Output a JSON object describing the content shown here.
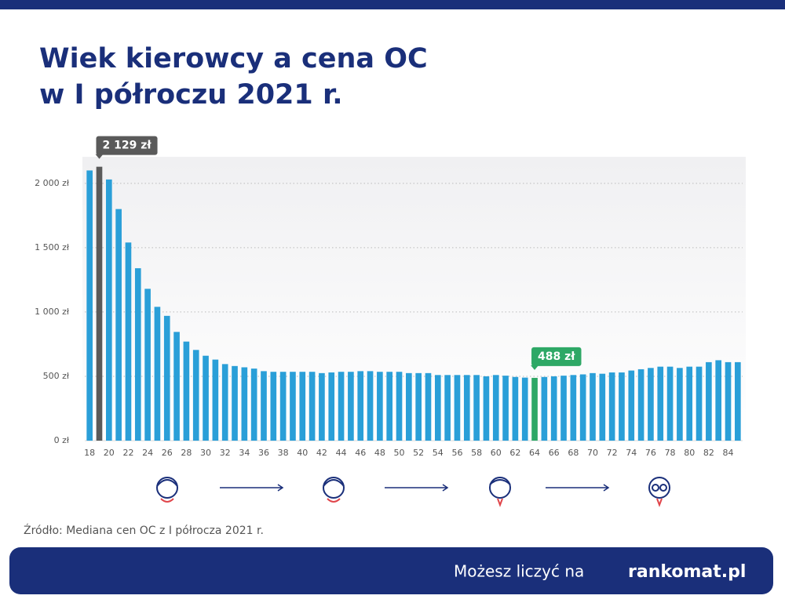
{
  "chart_data": {
    "type": "bar",
    "title": [
      "Wiek kierowcy a cena OC",
      "w I półroczu 2021 r."
    ],
    "categories": [
      "18",
      null,
      "20",
      null,
      "22",
      null,
      "24",
      null,
      "26",
      null,
      "28",
      null,
      "30",
      null,
      "32",
      null,
      "34",
      null,
      "36",
      null,
      "38",
      null,
      "40",
      null,
      "42",
      null,
      "44",
      null,
      "46",
      null,
      "48",
      null,
      "50",
      null,
      "52",
      null,
      "54",
      null,
      "56",
      null,
      "58",
      null,
      "60",
      null,
      "62",
      null,
      "64",
      null,
      "66",
      null,
      "68",
      null,
      "70",
      null,
      "72",
      null,
      "74",
      null,
      "76",
      null,
      "78",
      null,
      "80",
      null,
      "82",
      null,
      "84",
      null
    ],
    "values": [
      2100,
      2129,
      2030,
      1800,
      1540,
      1340,
      1180,
      1040,
      970,
      845,
      770,
      705,
      660,
      630,
      595,
      580,
      570,
      560,
      540,
      535,
      535,
      535,
      535,
      535,
      525,
      530,
      535,
      535,
      540,
      540,
      535,
      535,
      535,
      525,
      525,
      525,
      510,
      510,
      510,
      510,
      510,
      500,
      510,
      505,
      495,
      490,
      488,
      495,
      500,
      505,
      510,
      515,
      525,
      520,
      530,
      530,
      545,
      555,
      565,
      575,
      575,
      565,
      575,
      575,
      610,
      625,
      610,
      610
    ],
    "value_labels": [
      null,
      "2 129 zł",
      null,
      null,
      null,
      null,
      null,
      null,
      null,
      null,
      null,
      null,
      null,
      null,
      null,
      null,
      null,
      null,
      null,
      null,
      null,
      null,
      null,
      null,
      null,
      null,
      null,
      null,
      null,
      null,
      null,
      null,
      null,
      null,
      null,
      null,
      null,
      null,
      null,
      null,
      null,
      null,
      null,
      null,
      null,
      null,
      "488 zł",
      null,
      null,
      null,
      null,
      null,
      null,
      null,
      null,
      null,
      null,
      null,
      null,
      null,
      null,
      null,
      null,
      null,
      null,
      null,
      null,
      null
    ],
    "color": "#2a9fd8",
    "highlight_colors": {
      "1": "#5a5a5a",
      "46": "#2ea866"
    },
    "ylim": [
      0,
      2200
    ],
    "yticks": [
      {
        "value": 0,
        "label": "0 zł"
      },
      {
        "value": 500,
        "label": "500 zł"
      },
      {
        "value": 1000,
        "label": "1 000 zł"
      },
      {
        "value": 1500,
        "label": "1 500 zł"
      },
      {
        "value": 2000,
        "label": "2 000 zł"
      }
    ],
    "grid": true,
    "source": "Źródło: Mediana cen OC z I półrocza 2021 r.",
    "footer": "Możesz liczyć na",
    "logo": "rankomat.pl"
  }
}
